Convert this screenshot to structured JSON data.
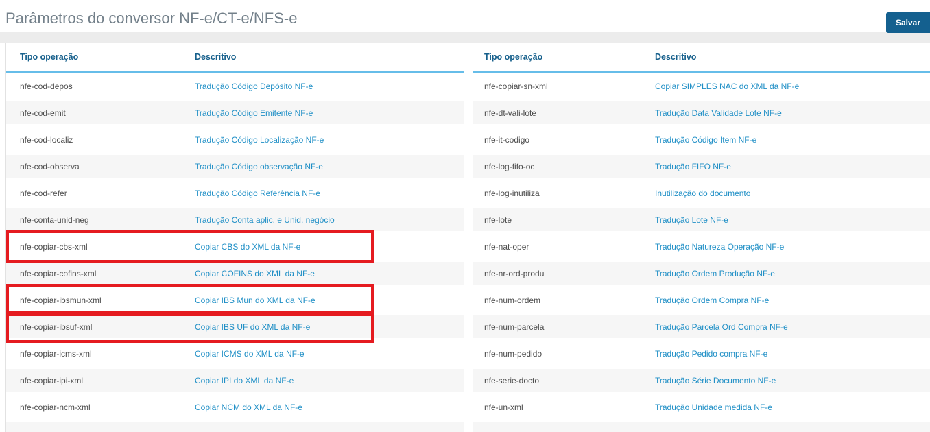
{
  "page": {
    "title": "Parâmetros do conversor NF-e/CT-e/NFS-e"
  },
  "toolbar": {
    "save_label": "Salvar"
  },
  "colors": {
    "button_blue": "#14608f",
    "header_blue": "#17608c",
    "link_blue": "#1f8fc6",
    "highlight_red": "#e51b20",
    "stripe_gray": "#f6f6f6",
    "underline_blue": "#66bde9"
  },
  "tables": [
    {
      "columns": {
        "tipo": "Tipo operação",
        "descritivo": "Descritivo"
      },
      "rows": [
        {
          "tipo": "nfe-cod-depos",
          "descritivo": "Tradução Código Depósito NF-e",
          "highlighted": false
        },
        {
          "tipo": "nfe-cod-emit",
          "descritivo": "Tradução Código Emitente NF-e",
          "highlighted": false
        },
        {
          "tipo": "nfe-cod-localiz",
          "descritivo": "Tradução Código Localização NF-e",
          "highlighted": false
        },
        {
          "tipo": "nfe-cod-observa",
          "descritivo": "Tradução Código observação NF-e",
          "highlighted": false
        },
        {
          "tipo": "nfe-cod-refer",
          "descritivo": "Tradução Código Referência NF-e",
          "highlighted": false
        },
        {
          "tipo": "nfe-conta-unid-neg",
          "descritivo": "Tradução Conta aplic. e Unid. negócio",
          "highlighted": false
        },
        {
          "tipo": "nfe-copiar-cbs-xml",
          "descritivo": "Copiar CBS do XML da NF-e",
          "highlighted": true
        },
        {
          "tipo": "nfe-copiar-cofins-xml",
          "descritivo": "Copiar COFINS do XML da NF-e",
          "highlighted": false
        },
        {
          "tipo": "nfe-copiar-ibsmun-xml",
          "descritivo": "Copiar IBS Mun do XML da NF-e",
          "highlighted": true
        },
        {
          "tipo": "nfe-copiar-ibsuf-xml",
          "descritivo": "Copiar IBS UF do XML da NF-e",
          "highlighted": true
        },
        {
          "tipo": "nfe-copiar-icms-xml",
          "descritivo": "Copiar ICMS do XML da NF-e",
          "highlighted": false
        },
        {
          "tipo": "nfe-copiar-ipi-xml",
          "descritivo": "Copiar IPI do XML da NF-e",
          "highlighted": false
        },
        {
          "tipo": "nfe-copiar-ncm-xml",
          "descritivo": "Copiar NCM do XML da NF-e",
          "highlighted": false
        }
      ]
    },
    {
      "columns": {
        "tipo": "Tipo operação",
        "descritivo": "Descritivo"
      },
      "rows": [
        {
          "tipo": "nfe-copiar-sn-xml",
          "descritivo": "Copiar SIMPLES NAC do XML da NF-e",
          "highlighted": false
        },
        {
          "tipo": "nfe-dt-vali-lote",
          "descritivo": "Tradução Data Validade Lote NF-e",
          "highlighted": false
        },
        {
          "tipo": "nfe-it-codigo",
          "descritivo": "Tradução Código Item NF-e",
          "highlighted": false
        },
        {
          "tipo": "nfe-log-fifo-oc",
          "descritivo": "Tradução FIFO NF-e",
          "highlighted": false
        },
        {
          "tipo": "nfe-log-inutiliza",
          "descritivo": "Inutilização do documento",
          "highlighted": false
        },
        {
          "tipo": "nfe-lote",
          "descritivo": "Tradução Lote NF-e",
          "highlighted": false
        },
        {
          "tipo": "nfe-nat-oper",
          "descritivo": "Tradução Natureza Operação NF-e",
          "highlighted": false
        },
        {
          "tipo": "nfe-nr-ord-produ",
          "descritivo": "Tradução Ordem Produção NF-e",
          "highlighted": false
        },
        {
          "tipo": "nfe-num-ordem",
          "descritivo": "Tradução Ordem Compra NF-e",
          "highlighted": false
        },
        {
          "tipo": "nfe-num-parcela",
          "descritivo": "Tradução Parcela Ord Compra NF-e",
          "highlighted": false
        },
        {
          "tipo": "nfe-num-pedido",
          "descritivo": "Tradução Pedido compra NF-e",
          "highlighted": false
        },
        {
          "tipo": "nfe-serie-docto",
          "descritivo": "Tradução Série Documento NF-e",
          "highlighted": false
        },
        {
          "tipo": "nfe-un-xml",
          "descritivo": "Tradução Unidade medida NF-e",
          "highlighted": false
        }
      ]
    }
  ]
}
